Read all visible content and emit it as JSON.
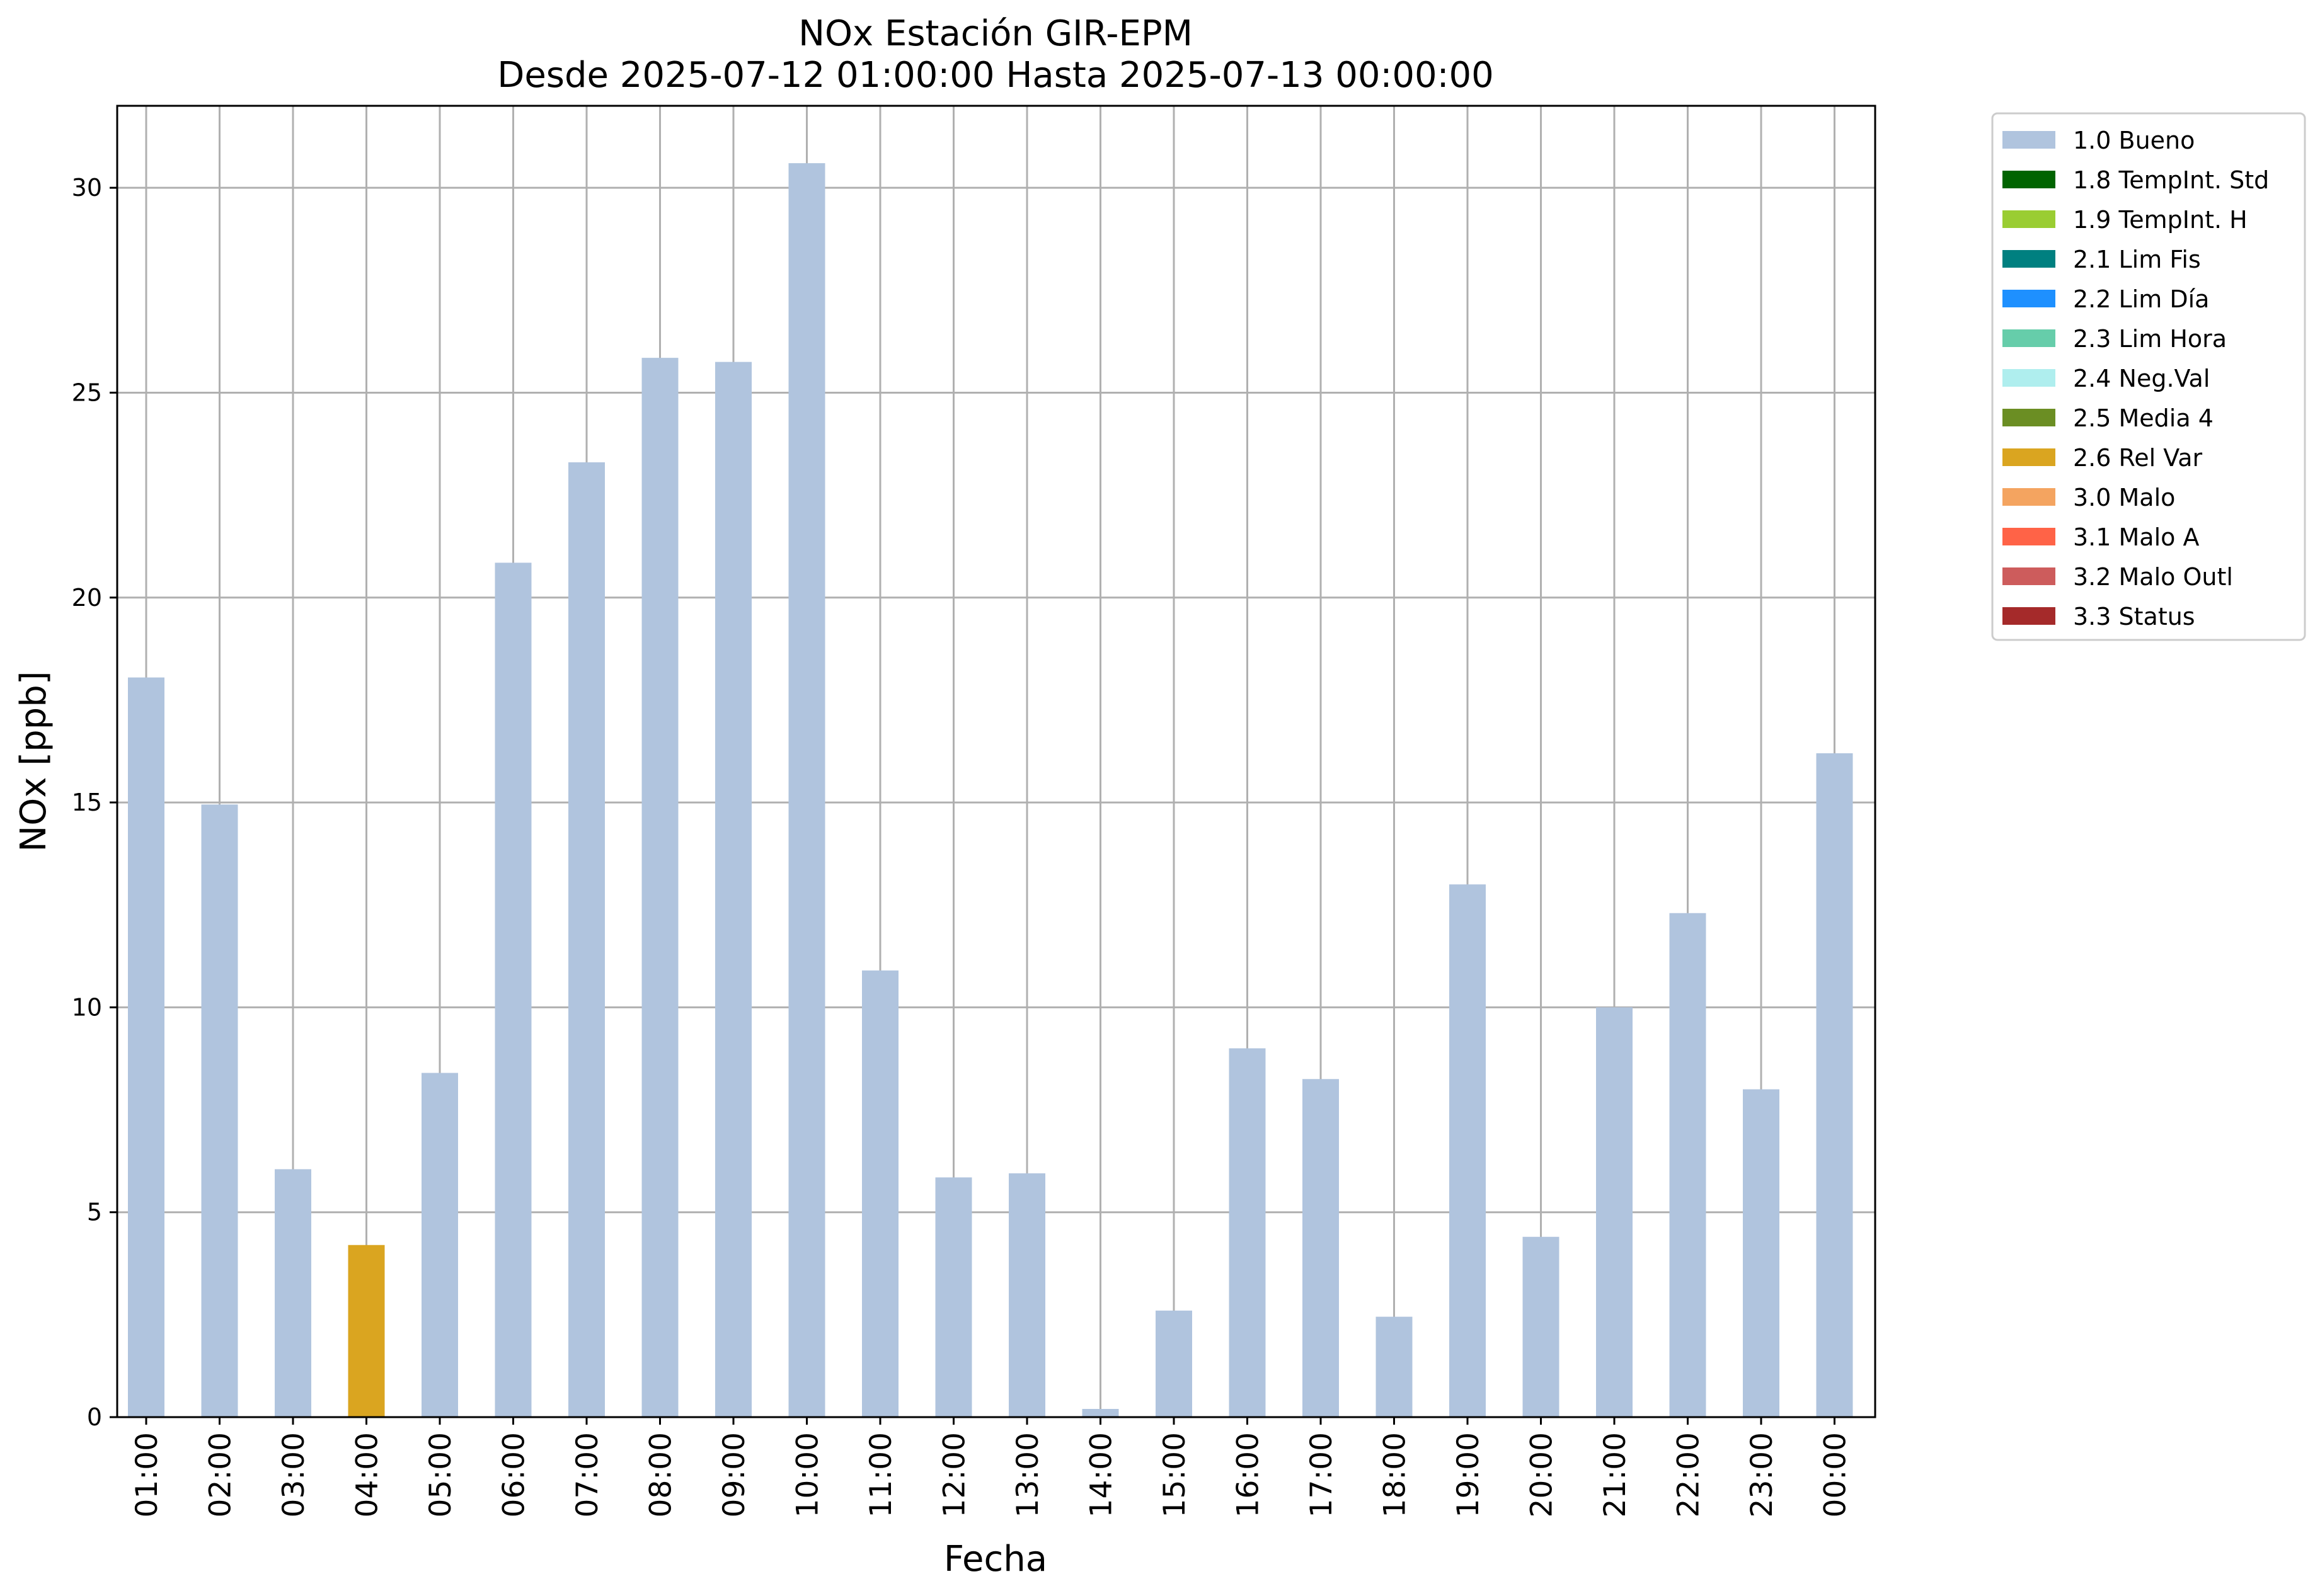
{
  "chart_data": {
    "type": "bar",
    "title": "NOx Estación GIR-EPM",
    "subtitle": "Desde 2025-07-12 01:00:00 Hasta 2025-07-13 00:00:00",
    "xlabel": "Fecha",
    "ylabel": "NOx [ppb]",
    "ylim": [
      0,
      32
    ],
    "yticks": [
      0,
      5,
      10,
      15,
      20,
      25,
      30
    ],
    "grid": true,
    "legend_position": "outside-right-top",
    "categories": [
      "01:00",
      "02:00",
      "03:00",
      "04:00",
      "05:00",
      "06:00",
      "07:00",
      "08:00",
      "09:00",
      "10:00",
      "11:00",
      "12:00",
      "13:00",
      "14:00",
      "15:00",
      "16:00",
      "17:00",
      "18:00",
      "19:00",
      "20:00",
      "21:00",
      "22:00",
      "23:00",
      "00:00"
    ],
    "values": [
      18.05,
      14.95,
      6.05,
      4.2,
      8.4,
      20.85,
      23.3,
      25.85,
      25.75,
      30.6,
      10.9,
      5.85,
      5.95,
      0.2,
      2.6,
      9.0,
      8.25,
      2.45,
      13.0,
      4.4,
      10.0,
      12.3,
      8.0,
      16.2
    ],
    "flags": [
      "1.0 Bueno",
      "1.0 Bueno",
      "1.0 Bueno",
      "2.6 Rel Var",
      "1.0 Bueno",
      "1.0 Bueno",
      "1.0 Bueno",
      "1.0 Bueno",
      "1.0 Bueno",
      "1.0 Bueno",
      "1.0 Bueno",
      "1.0 Bueno",
      "1.0 Bueno",
      "1.0 Bueno",
      "1.0 Bueno",
      "1.0 Bueno",
      "1.0 Bueno",
      "1.0 Bueno",
      "1.0 Bueno",
      "1.0 Bueno",
      "1.0 Bueno",
      "1.0 Bueno",
      "1.0 Bueno",
      "1.0 Bueno"
    ],
    "legend": [
      {
        "label": "1.0 Bueno",
        "color": "#b0c4de"
      },
      {
        "label": "1.8 TempInt. Std",
        "color": "#006400"
      },
      {
        "label": "1.9 TempInt. H",
        "color": "#9acd32"
      },
      {
        "label": "2.1 Lim Fis",
        "color": "#008080"
      },
      {
        "label": "2.2 Lim Día",
        "color": "#1e90ff"
      },
      {
        "label": "2.3 Lim Hora",
        "color": "#66cdaa"
      },
      {
        "label": "2.4 Neg.Val",
        "color": "#afeeee"
      },
      {
        "label": "2.5 Media 4",
        "color": "#6b8e23"
      },
      {
        "label": "2.6 Rel Var",
        "color": "#daa520"
      },
      {
        "label": "3.0 Malo",
        "color": "#f4a460"
      },
      {
        "label": "3.1 Malo A",
        "color": "#ff6347"
      },
      {
        "label": "3.2 Malo Outl",
        "color": "#cd5c5c"
      },
      {
        "label": "3.3 Status",
        "color": "#a52a2a"
      }
    ]
  }
}
